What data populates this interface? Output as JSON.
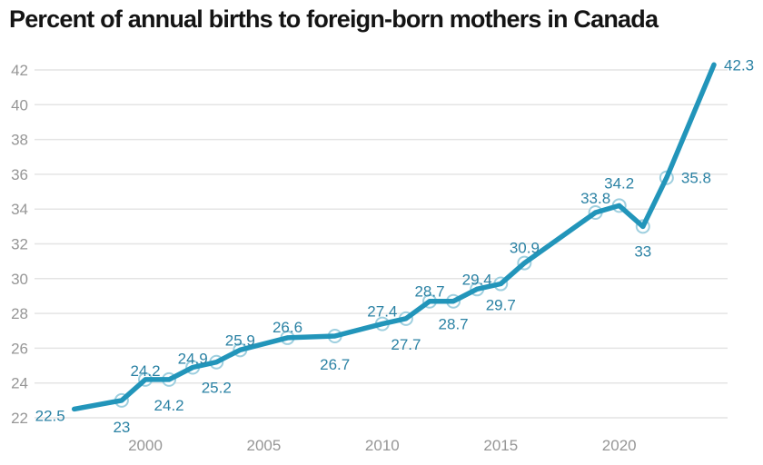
{
  "page": {
    "background": "#ffffff"
  },
  "chart_data": {
    "type": "line",
    "title": "Percent of annual births to foreign-born mothers in Canada",
    "xlabel": "",
    "ylabel": "",
    "x": [
      1997,
      1999,
      2000,
      2001,
      2002,
      2003,
      2004,
      2006,
      2008,
      2010,
      2011,
      2012,
      2013,
      2014,
      2015,
      2016,
      2019,
      2020,
      2021,
      2022,
      2024
    ],
    "values": [
      22.5,
      23,
      24.2,
      24.2,
      24.9,
      25.2,
      25.9,
      26.6,
      26.7,
      27.4,
      27.7,
      28.7,
      28.7,
      29.4,
      29.7,
      30.9,
      33.8,
      34.2,
      33,
      35.8,
      42.3
    ],
    "point_labels": [
      "22.5",
      "23",
      "24.2",
      "24.2",
      "24.9",
      "25.2",
      "25.9",
      "26.6",
      "26.7",
      "27.4",
      "27.7",
      "28.7",
      "28.7",
      "29.4",
      "29.7",
      "30.9",
      "33.8",
      "34.2",
      "33",
      "35.8",
      "42.3"
    ],
    "label_pos": [
      "left",
      "below",
      "above",
      "below",
      "above",
      "below",
      "above",
      "above",
      "below",
      "above",
      "below",
      "above",
      "below",
      "above",
      "below",
      "above",
      "above",
      "above",
      "below",
      "right",
      "right"
    ],
    "label_dx": [
      -10,
      0,
      0,
      0,
      0,
      0,
      0,
      0,
      0,
      0,
      0,
      0,
      0,
      0,
      0,
      0,
      0,
      0,
      0,
      16,
      11
    ],
    "label_dy": [
      13,
      35,
      -4,
      34,
      -4,
      34,
      -5,
      -6,
      37,
      -8,
      34,
      -5,
      31,
      -5,
      29,
      -11,
      -10,
      -19,
      33,
      6,
      6
    ],
    "marker": [
      false,
      true,
      true,
      true,
      true,
      true,
      true,
      true,
      true,
      true,
      true,
      true,
      true,
      true,
      true,
      true,
      true,
      true,
      true,
      true,
      false
    ],
    "ylim": [
      22,
      42
    ],
    "ytick_step": 2,
    "yticks": [
      22,
      24,
      26,
      28,
      30,
      32,
      34,
      36,
      38,
      40,
      42
    ],
    "xticks": [
      2000,
      2005,
      2010,
      2015,
      2020
    ],
    "grid": true,
    "legend": false,
    "colors": {
      "line": "#2295ba",
      "marker_stroke": "#9ecfdf",
      "marker_fill": "#ffffff",
      "value_label": "#2b82a4",
      "axis_text": "#969696",
      "gridline": "#e4e4e4",
      "title": "#141414"
    }
  }
}
